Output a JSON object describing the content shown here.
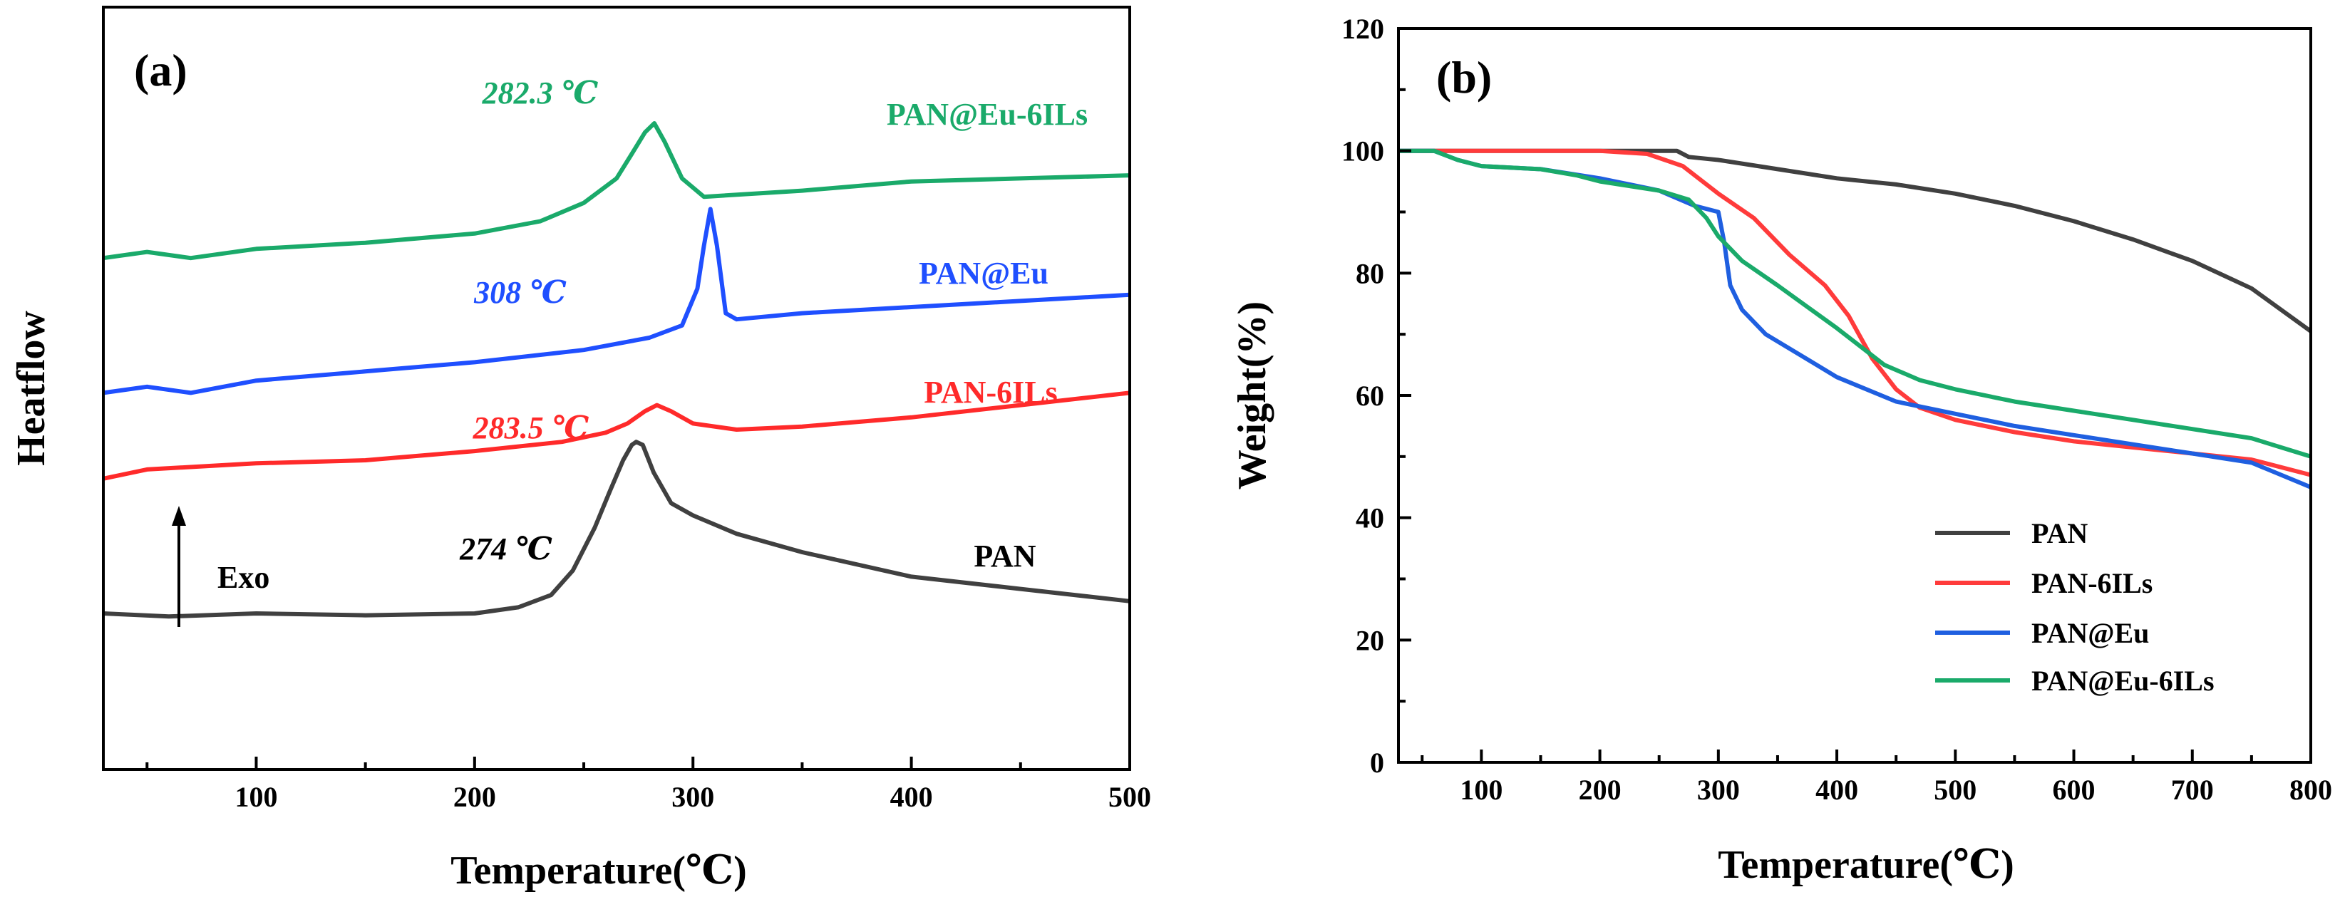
{
  "chart_data": [
    {
      "type": "line",
      "panel": "(a)",
      "title": "",
      "xlabel": "Temperature(℃)",
      "ylabel": "Heatflow",
      "xlim": [
        30,
        500
      ],
      "ylim": [
        0,
        100
      ],
      "x_ticks": [
        100,
        200,
        300,
        400,
        500
      ],
      "y_ticks_shown": false,
      "grid": false,
      "legend": "none (curves labeled inline)",
      "exo_label": "Exo",
      "series": [
        {
          "name": "PAN",
          "color": "#404040",
          "x": [
            30,
            60,
            100,
            150,
            200,
            220,
            235,
            245,
            255,
            262,
            268,
            272,
            274,
            277,
            282,
            290,
            300,
            320,
            350,
            400,
            450,
            500
          ],
          "y": [
            15,
            14.5,
            15,
            14.7,
            15,
            16,
            18,
            22,
            29,
            35,
            40,
            42.5,
            43,
            42.5,
            38,
            33,
            31,
            28,
            25,
            21,
            19,
            17
          ]
        },
        {
          "name": "PAN-6ILs",
          "color": "#ff2a2a",
          "x": [
            30,
            50,
            100,
            150,
            200,
            240,
            260,
            270,
            278,
            283.5,
            290,
            300,
            320,
            350,
            400,
            450,
            500
          ],
          "y": [
            37,
            38.5,
            39.5,
            40,
            41.5,
            43,
            44.5,
            46,
            48,
            49,
            48,
            46,
            45,
            45.5,
            47,
            49,
            51
          ]
        },
        {
          "name": "PAN@Eu",
          "color": "#1f4fff",
          "x": [
            30,
            50,
            70,
            100,
            150,
            200,
            250,
            280,
            295,
            302,
            305,
            308,
            311,
            315,
            320,
            350,
            400,
            450,
            500
          ],
          "y": [
            51,
            52,
            51,
            53,
            54.5,
            56,
            58,
            60,
            62,
            68,
            75,
            81,
            75,
            64,
            63,
            64,
            65,
            66,
            67
          ]
        },
        {
          "name": "PAN@Eu-6ILs",
          "color": "#1aaa6a",
          "x": [
            30,
            50,
            70,
            100,
            150,
            200,
            230,
            250,
            265,
            272,
            278,
            282.3,
            287,
            295,
            305,
            350,
            400,
            450,
            500
          ],
          "y": [
            73,
            74,
            73,
            74.5,
            75.5,
            77,
            79,
            82,
            86,
            90,
            93.5,
            95,
            92,
            86,
            83,
            84,
            85.5,
            86,
            86.5
          ]
        }
      ],
      "annotations": [
        {
          "text": "274  ℃",
          "color": "#000000"
        },
        {
          "text": "283.5  ℃",
          "color": "#ff2a2a"
        },
        {
          "text": "308  ℃",
          "color": "#1f4fff"
        },
        {
          "text": "282.3  ℃",
          "color": "#1aaa6a"
        }
      ]
    },
    {
      "type": "line",
      "panel": "(b)",
      "title": "",
      "xlabel": "Temperature(℃)",
      "ylabel": "Weight(%)",
      "xlim": [
        30,
        800
      ],
      "ylim": [
        0,
        120
      ],
      "x_ticks": [
        100,
        200,
        300,
        400,
        500,
        600,
        700,
        800
      ],
      "y_ticks": [
        0,
        20,
        40,
        60,
        80,
        100,
        120
      ],
      "grid": false,
      "legend": "bottom-right",
      "series": [
        {
          "name": "PAN",
          "color": "#404040",
          "x": [
            30,
            100,
            200,
            265,
            275,
            300,
            350,
            400,
            450,
            500,
            550,
            600,
            650,
            700,
            750,
            800
          ],
          "y": [
            100,
            100,
            100,
            100,
            99,
            98.5,
            97,
            95.5,
            94.5,
            93,
            91,
            88.5,
            85.5,
            82,
            77.5,
            70.5
          ]
        },
        {
          "name": "PAN-6ILs",
          "color": "#ff3b3b",
          "x": [
            30,
            100,
            200,
            240,
            270,
            300,
            330,
            360,
            390,
            410,
            430,
            450,
            470,
            500,
            550,
            600,
            650,
            700,
            750,
            800
          ],
          "y": [
            100,
            100,
            100,
            99.5,
            97.5,
            93,
            89,
            83,
            78,
            73,
            66,
            61,
            58,
            56,
            54,
            52.5,
            51.5,
            50.5,
            49.5,
            47
          ]
        },
        {
          "name": "PAN@Eu",
          "color": "#1f5fe0",
          "x": [
            30,
            60,
            80,
            100,
            150,
            200,
            250,
            280,
            300,
            305,
            310,
            320,
            340,
            370,
            400,
            450,
            500,
            550,
            600,
            650,
            700,
            750,
            800
          ],
          "y": [
            100,
            100,
            98.5,
            97.5,
            97,
            95.5,
            93.5,
            91,
            90,
            85,
            78,
            74,
            70,
            66.5,
            63,
            59,
            57,
            55,
            53.5,
            52,
            50.5,
            49,
            45
          ]
        },
        {
          "name": "PAN@Eu-6ILs",
          "color": "#1aaa6a",
          "x": [
            30,
            60,
            80,
            100,
            150,
            180,
            200,
            250,
            275,
            290,
            300,
            320,
            350,
            400,
            440,
            470,
            500,
            550,
            600,
            650,
            700,
            750,
            800
          ],
          "y": [
            100,
            100,
            98.5,
            97.5,
            97,
            96,
            95,
            93.5,
            92,
            89,
            86,
            82,
            78,
            71,
            65,
            62.5,
            61,
            59,
            57.5,
            56,
            54.5,
            53,
            50
          ]
        }
      ]
    }
  ]
}
